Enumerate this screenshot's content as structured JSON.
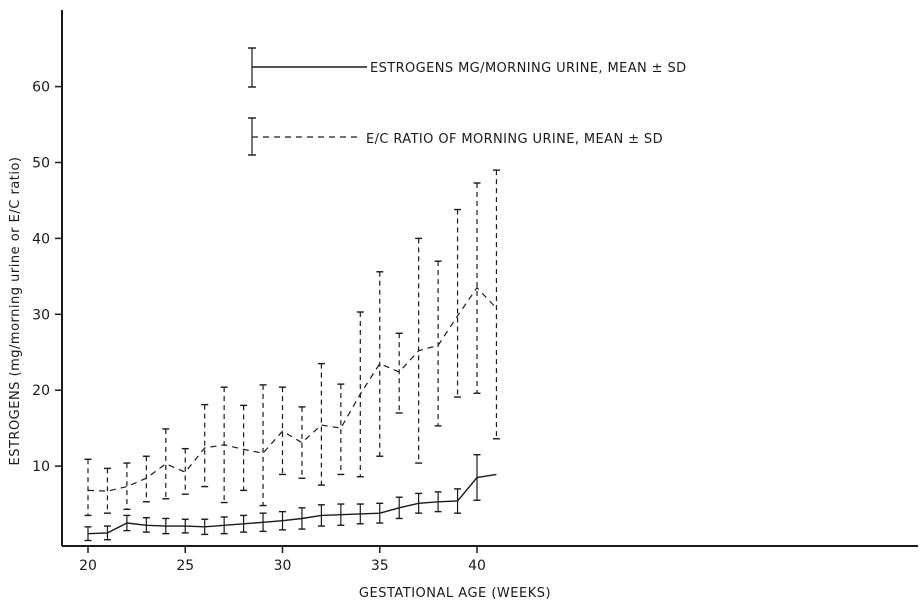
{
  "chart_data": {
    "type": "line",
    "title": "",
    "xlabel": "GESTATIONAL AGE (WEEKS)",
    "ylabel": "ESTROGENS (mg/morning urine or E/C ratio)",
    "xlim": [
      19.2,
      42.2
    ],
    "ylim": [
      0,
      67
    ],
    "xticks": [
      20,
      25,
      30,
      35,
      40
    ],
    "yticks": [
      10,
      20,
      30,
      40,
      50,
      60
    ],
    "grid": false,
    "legend_position": "top-left",
    "x": [
      20,
      21,
      22,
      23,
      24,
      25,
      26,
      27,
      28,
      29,
      30,
      31,
      32,
      33,
      34,
      35,
      36,
      37,
      38,
      39,
      40,
      41
    ],
    "series": [
      {
        "name": "ESTROGENS MG/MORNING URINE, MEAN ± SD",
        "style": "solid",
        "values": [
          1.1,
          1.2,
          2.5,
          2.2,
          2.1,
          2.1,
          2.0,
          2.2,
          2.4,
          2.6,
          2.8,
          3.1,
          3.5,
          3.6,
          3.7,
          3.8,
          4.5,
          5.1,
          5.3,
          5.4,
          8.5,
          8.9
        ],
        "upper": [
          2.0,
          2.1,
          3.5,
          3.2,
          3.1,
          3.0,
          3.0,
          3.3,
          3.5,
          3.8,
          4.0,
          4.5,
          4.9,
          5.0,
          5.0,
          5.1,
          5.9,
          6.4,
          6.6,
          7.0,
          11.5,
          null
        ],
        "lower": [
          0.2,
          0.3,
          1.5,
          1.3,
          1.1,
          1.2,
          1.0,
          1.1,
          1.3,
          1.4,
          1.6,
          1.7,
          2.1,
          2.2,
          2.4,
          2.5,
          3.1,
          3.8,
          4.0,
          3.8,
          5.5,
          null
        ]
      },
      {
        "name": "E/C RATIO OF MORNING URINE, MEAN ± SD",
        "style": "dashed",
        "values": [
          6.8,
          6.7,
          7.3,
          8.4,
          10.3,
          9.2,
          12.4,
          12.8,
          12.2,
          11.7,
          14.6,
          13.1,
          15.4,
          15.0,
          19.5,
          23.5,
          22.4,
          25.2,
          25.9,
          29.8,
          33.5,
          30.8
        ],
        "upper": [
          10.9,
          9.7,
          10.4,
          11.3,
          14.9,
          12.3,
          18.1,
          20.4,
          18.0,
          20.7,
          20.4,
          17.8,
          23.5,
          20.8,
          30.3,
          35.6,
          27.5,
          40.0,
          37.0,
          43.8,
          47.3,
          49.0
        ],
        "lower": [
          3.5,
          3.8,
          4.3,
          5.3,
          5.7,
          6.3,
          7.3,
          5.2,
          6.8,
          4.8,
          8.9,
          8.4,
          7.5,
          8.9,
          8.6,
          11.3,
          17.0,
          10.4,
          15.3,
          19.1,
          19.6,
          13.6
        ]
      }
    ]
  }
}
